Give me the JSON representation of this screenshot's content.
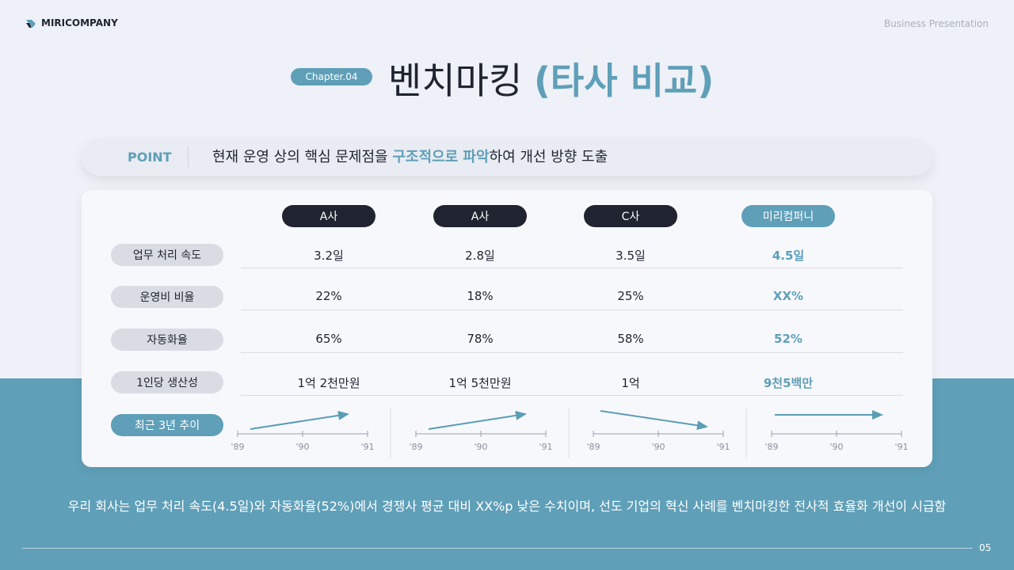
{
  "header": {
    "logo": "MIRICOMPANY",
    "tag": "Business Presentation"
  },
  "title": {
    "chapter": "Chapter.04",
    "main": "벤치마킹",
    "accent": "(타사 비교)"
  },
  "point": {
    "label": "POINT",
    "text_before": "현재 운영 상의 핵심 문제점을 ",
    "highlight": "구조적으로 파악",
    "text_after": "하여 개선 방향 도출"
  },
  "table": {
    "columns": [
      "A사",
      "A사",
      "C사",
      "미리컴퍼니"
    ],
    "rows": [
      {
        "label": "업무 처리 속도",
        "values": [
          "3.2일",
          "2.8일",
          "3.5일",
          "4.5일"
        ]
      },
      {
        "label": "운영비 비율",
        "values": [
          "22%",
          "18%",
          "25%",
          "XX%"
        ]
      },
      {
        "label": "자동화율",
        "values": [
          "65%",
          "78%",
          "58%",
          "52%"
        ]
      },
      {
        "label": "1인당 생산성",
        "values": [
          "1억 2천만원",
          "1억 5천만원",
          "1억",
          "9천5백만"
        ]
      }
    ],
    "trend_label": "최근 3년 추이",
    "trend_ticks": [
      "'89",
      "'90",
      "'91"
    ]
  },
  "footer": {
    "summary": "우리 회사는 업무 처리 속도(4.5일)와 자동화율(52%)에서 경쟁사 평균 대비 XX%p 낮은 수치이며, 선도 기업의 혁신 사례를 벤치마킹한 전사적 효율화 개선이 시급함",
    "page": "05"
  }
}
